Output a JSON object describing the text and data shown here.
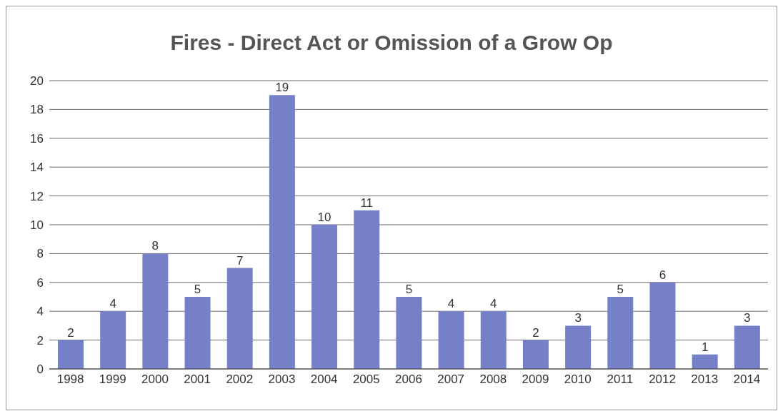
{
  "chart_data": {
    "type": "bar",
    "title": "Fires - Direct Act or Omission of a Grow Op",
    "categories": [
      "1998",
      "1999",
      "2000",
      "2001",
      "2002",
      "2003",
      "2004",
      "2005",
      "2006",
      "2007",
      "2008",
      "2009",
      "2010",
      "2011",
      "2012",
      "2013",
      "2014"
    ],
    "values": [
      2,
      4,
      8,
      5,
      7,
      19,
      10,
      11,
      5,
      4,
      4,
      2,
      3,
      5,
      6,
      1,
      3
    ],
    "color": "#7680c8",
    "ylim": [
      0,
      20
    ],
    "yticks": [
      0,
      2,
      4,
      6,
      8,
      10,
      12,
      14,
      16,
      18,
      20
    ],
    "grid": "y",
    "data_labels": true,
    "legend": false
  }
}
